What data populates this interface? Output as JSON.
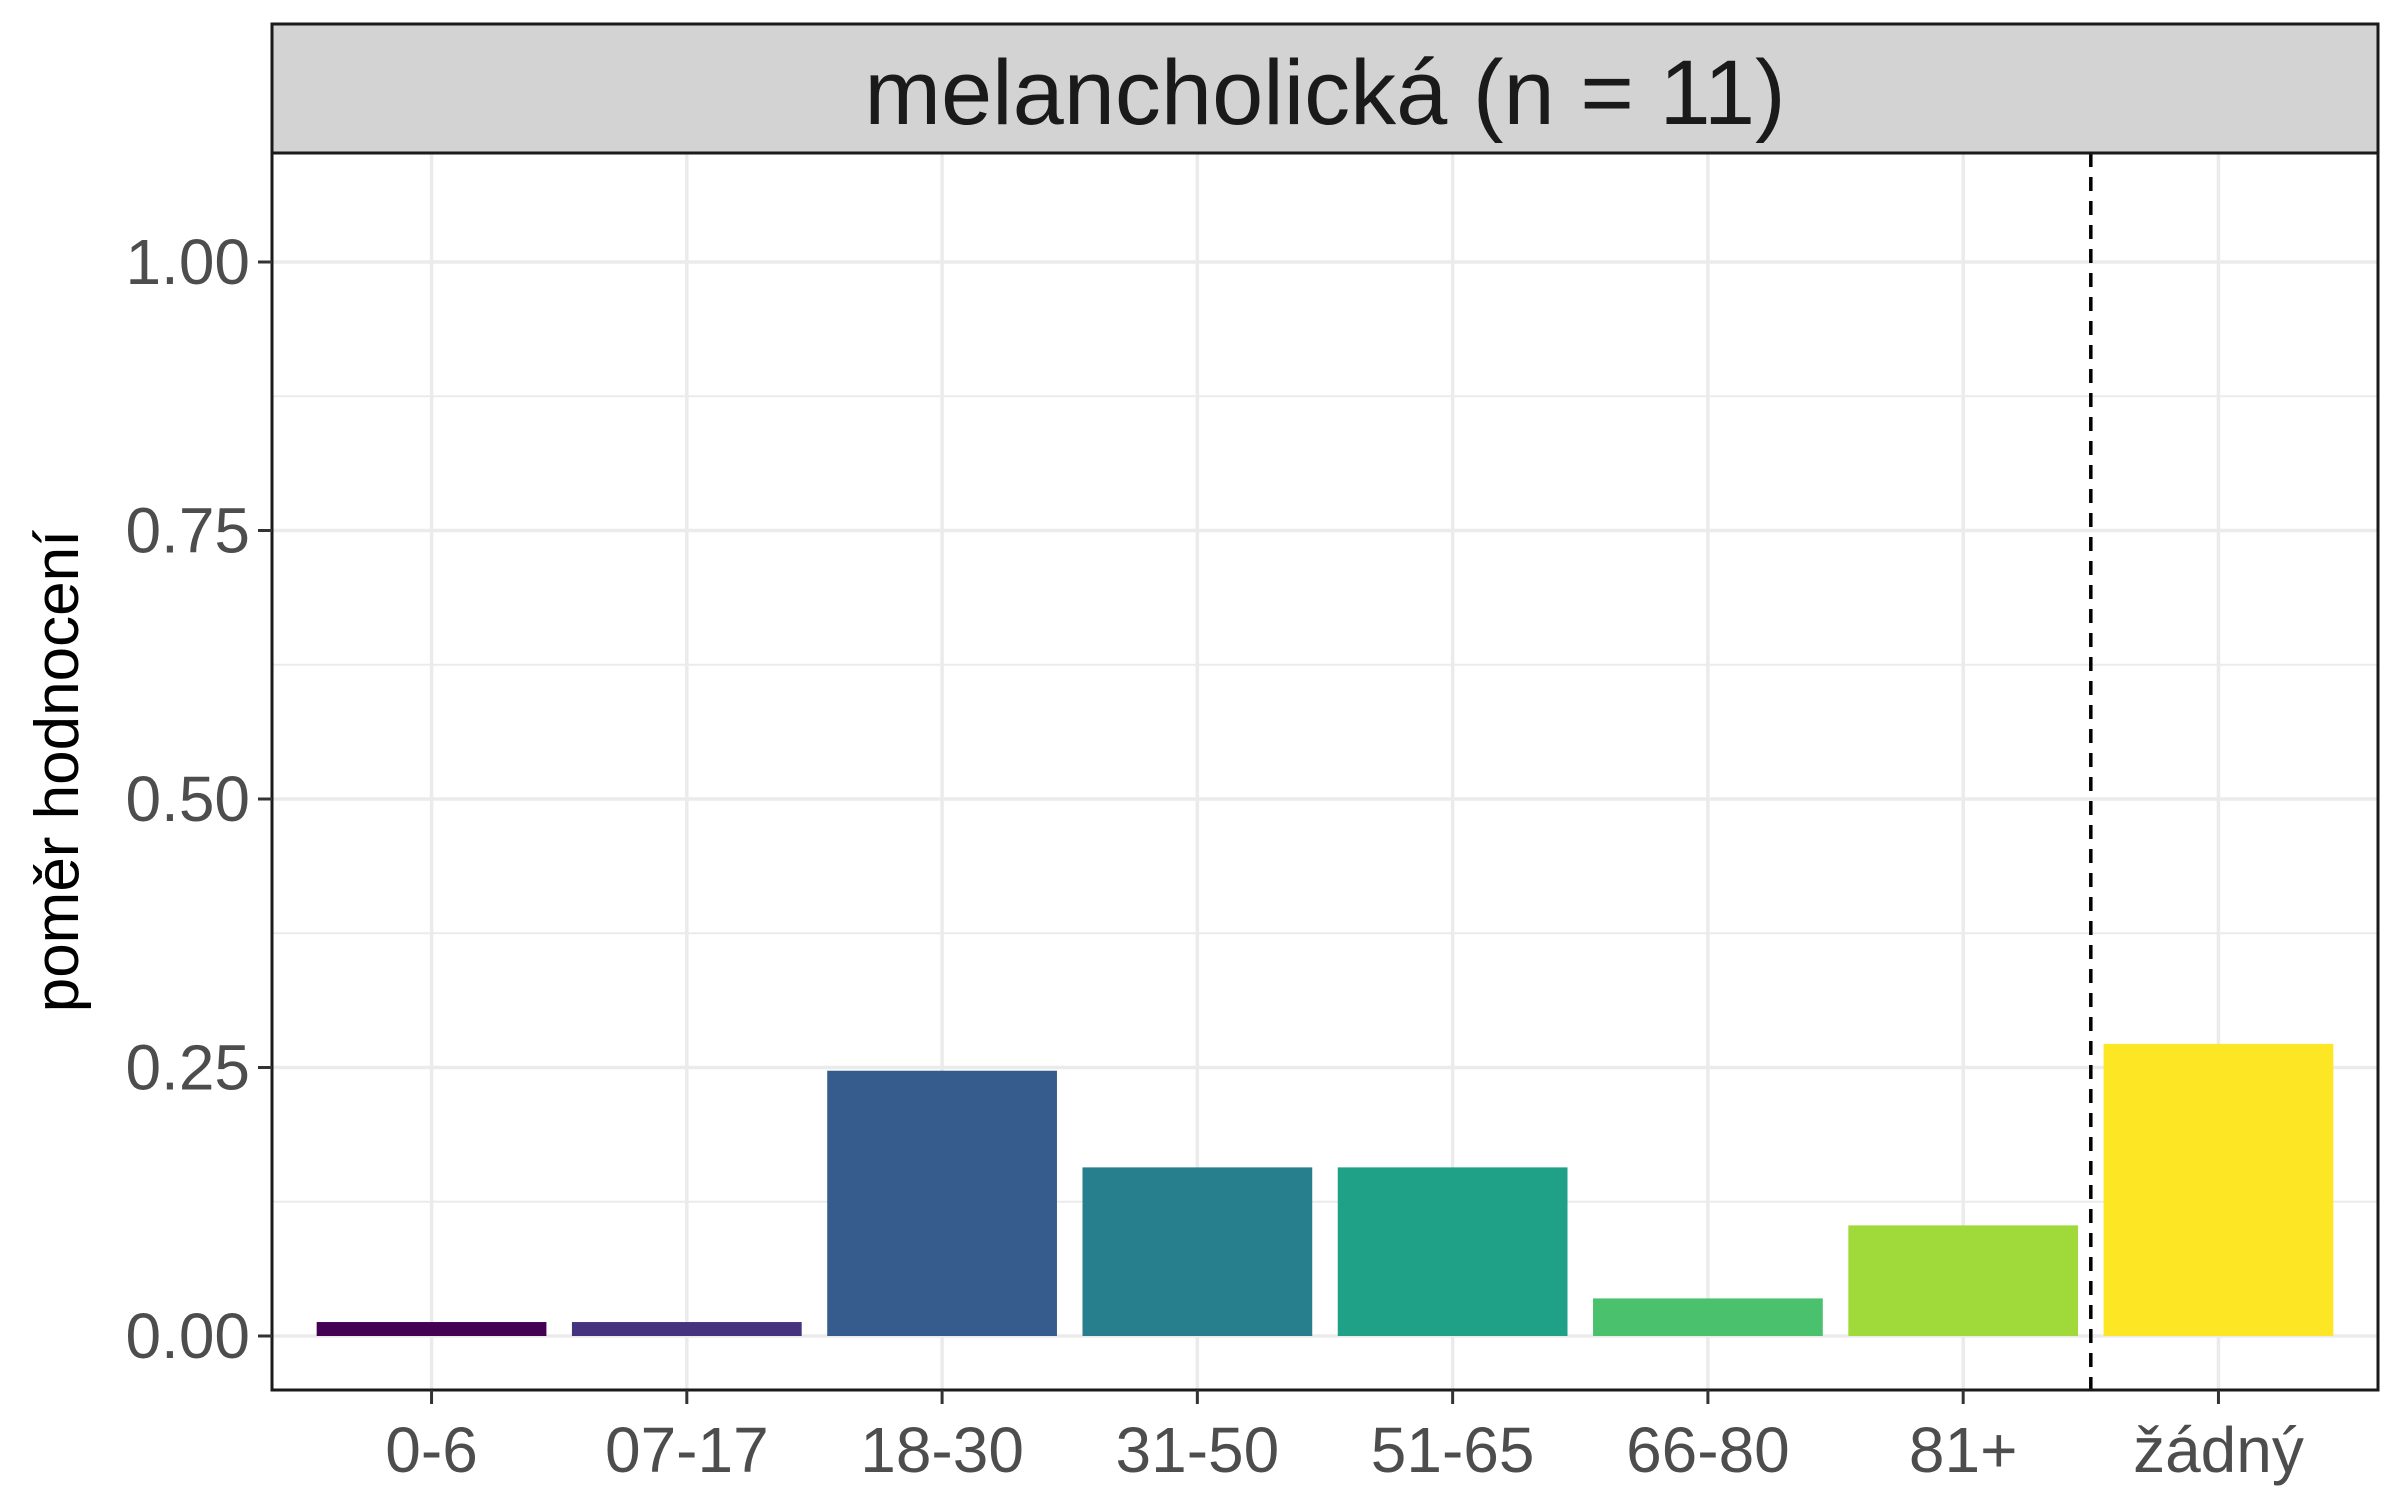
{
  "chart_data": {
    "type": "bar",
    "facet_title": "melancholická (n = 11)",
    "xlabel": "",
    "ylabel": "poměr hodnocení",
    "ylim": [
      -0.025,
      1.1
    ],
    "yticks": [
      0.0,
      0.25,
      0.5,
      0.75,
      1.0
    ],
    "ytick_labels": [
      "0.00",
      "0.25",
      "0.50",
      "0.75",
      "1.00"
    ],
    "categories": [
      "0-6",
      "07-17",
      "18-30",
      "31-50",
      "51-65",
      "66-80",
      "81+",
      "žádný"
    ],
    "values": [
      0.013,
      0.013,
      0.247,
      0.157,
      0.157,
      0.035,
      0.103,
      0.272
    ],
    "colors": [
      "#440154",
      "#46337E",
      "#365C8D",
      "#277F8E",
      "#1FA187",
      "#4AC16D",
      "#9FDA3A",
      "#FDE725"
    ],
    "separator_after_category": "81+",
    "grid": true
  }
}
